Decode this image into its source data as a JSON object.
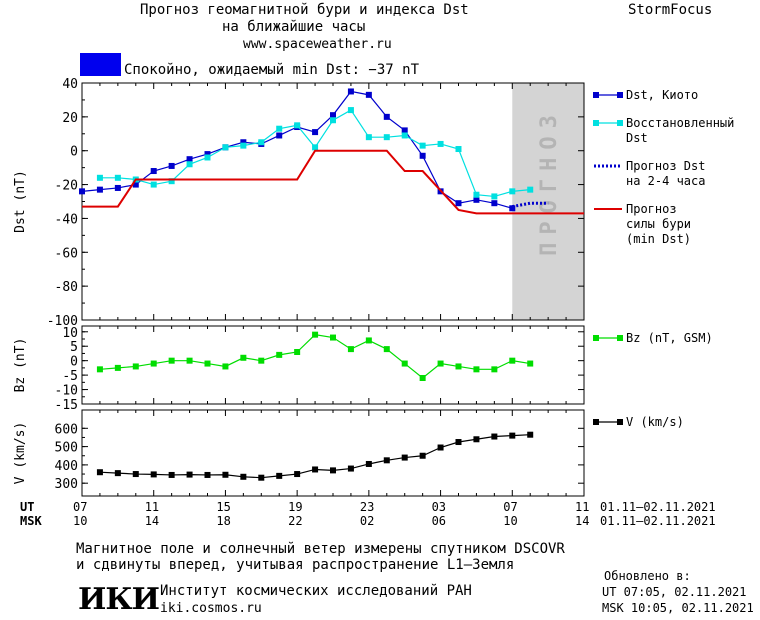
{
  "header": {
    "title_line1": "Прогноз геомагнитной бури и индекса Dst",
    "title_line2": "на ближайшие часы",
    "site": "www.spaceweather.ru",
    "brand": "StormFocus"
  },
  "status": {
    "color": "#0000ee",
    "text": "Спокойно, ожидаемый min Dst: −37 nT"
  },
  "forecast_band_label": "ПРОГНОЗ",
  "time_axis": {
    "ut_label": "UT",
    "msk_label": "MSK",
    "ut_ticks": [
      "07",
      "11",
      "15",
      "19",
      "23",
      "03",
      "07",
      "11"
    ],
    "msk_ticks": [
      "10",
      "14",
      "18",
      "22",
      "02",
      "06",
      "10",
      "14"
    ],
    "ut_range": "01.11–02.11.2021",
    "msk_range": "01.11–02.11.2021"
  },
  "footer": {
    "note_line1": "Магнитное поле и солнечный ветер измерены спутником DSCOVR",
    "note_line2": "и сдвинуты вперед, учитывая распространение L1–Земля",
    "logo": "ИКИ",
    "institute": "Институт космических исследований РАН",
    "institute_site": "iki.cosmos.ru",
    "updated_label": "Обновлено в:",
    "updated_ut": "UT   07:05, 02.11.2021",
    "updated_msk": "MSK 10:05, 02.11.2021"
  },
  "chart_data": [
    {
      "type": "line",
      "ylabel": "Dst (nT)",
      "ylim": [
        -100,
        40
      ],
      "yticks": [
        40,
        20,
        0,
        -20,
        -40,
        -60,
        -80,
        -100
      ],
      "x_hours_ut_range": [
        7,
        35
      ],
      "forecast_region_hours": [
        31,
        35
      ],
      "series": [
        {
          "name": "Dst, Киото",
          "color": "#0000cc",
          "marker": "square",
          "x": [
            7,
            8,
            9,
            10,
            11,
            12,
            13,
            14,
            15,
            16,
            17,
            18,
            19,
            20,
            21,
            22,
            23,
            24,
            25,
            26,
            27,
            28,
            29,
            30,
            31
          ],
          "y": [
            -24,
            -23,
            -22,
            -20,
            -12,
            -9,
            -5,
            -2,
            2,
            5,
            4,
            9,
            14,
            11,
            21,
            35,
            33,
            20,
            12,
            -3,
            -24,
            -31,
            -29,
            -31,
            -34
          ]
        },
        {
          "name": "Восстановленный Dst",
          "color": "#00e0e0",
          "marker": "square",
          "x": [
            8,
            9,
            10,
            11,
            12,
            13,
            14,
            15,
            16,
            17,
            18,
            19,
            20,
            21,
            22,
            23,
            24,
            25,
            26,
            27,
            28,
            29,
            30,
            31,
            32
          ],
          "y": [
            -16,
            -16,
            -17,
            -20,
            -18,
            -8,
            -4,
            2,
            3,
            5,
            13,
            15,
            2,
            18,
            24,
            8,
            8,
            9,
            3,
            4,
            1,
            -26,
            -27,
            -24,
            -23
          ]
        },
        {
          "name": "Прогноз Dst на 2-4 часа",
          "color": "#0000cc",
          "style": "dotted",
          "x": [
            31,
            32,
            33
          ],
          "y": [
            -33,
            -31,
            -31
          ]
        },
        {
          "name": "Прогноз силы бури (min Dst)",
          "color": "#dd0000",
          "style": "step",
          "x": [
            7,
            9,
            10,
            11,
            19,
            20,
            24,
            25,
            26,
            28,
            29,
            35
          ],
          "y": [
            -33,
            -33,
            -17,
            -17,
            -17,
            0,
            0,
            -12,
            -12,
            -35,
            -37,
            -37
          ]
        }
      ],
      "legend": [
        {
          "label": "Dst, Киото",
          "color": "#0000cc",
          "kind": "line-square"
        },
        {
          "label": "Восстановленный\nDst",
          "color": "#00e0e0",
          "kind": "line-square"
        },
        {
          "label": "Прогноз Dst\nна 2-4 часа",
          "color": "#0000cc",
          "kind": "dotted"
        },
        {
          "label": "Прогноз\nсилы бури\n(min Dst)",
          "color": "#dd0000",
          "kind": "line"
        }
      ]
    },
    {
      "type": "line",
      "ylabel": "Bz (nT)",
      "ylim": [
        -15,
        12
      ],
      "yticks": [
        10,
        5,
        0,
        -5,
        -10,
        -15
      ],
      "series": [
        {
          "name": "Bz (nT, GSM)",
          "color": "#00dd00",
          "marker": "square",
          "x": [
            8,
            9,
            10,
            11,
            12,
            13,
            14,
            15,
            16,
            17,
            18,
            19,
            20,
            21,
            22,
            23,
            24,
            25,
            26,
            27,
            28,
            29,
            30,
            31,
            32
          ],
          "y": [
            -3,
            -2.5,
            -2,
            -1,
            0,
            0,
            -1,
            -2,
            1,
            0,
            2,
            3,
            9,
            8,
            4,
            7,
            4,
            -1,
            -6,
            -1,
            -2,
            -3,
            -3,
            0,
            -1
          ]
        }
      ],
      "legend": [
        {
          "label": "Bz (nT, GSM)",
          "color": "#00dd00",
          "kind": "line-square"
        }
      ]
    },
    {
      "type": "line",
      "ylabel": "V (km/s)",
      "ylim": [
        230,
        700
      ],
      "yticks": [
        600,
        500,
        400,
        300
      ],
      "series": [
        {
          "name": "V (km/s)",
          "color": "#000000",
          "marker": "square",
          "x": [
            8,
            9,
            10,
            11,
            12,
            13,
            14,
            15,
            16,
            17,
            18,
            19,
            20,
            21,
            22,
            23,
            24,
            25,
            26,
            27,
            28,
            29,
            30,
            31,
            32
          ],
          "y": [
            360,
            355,
            350,
            348,
            345,
            347,
            345,
            346,
            335,
            330,
            340,
            350,
            375,
            370,
            380,
            405,
            425,
            440,
            450,
            495,
            525,
            540,
            555,
            560,
            565
          ]
        }
      ],
      "legend": [
        {
          "label": "V (km/s)",
          "color": "#000000",
          "kind": "line-square"
        }
      ]
    }
  ]
}
